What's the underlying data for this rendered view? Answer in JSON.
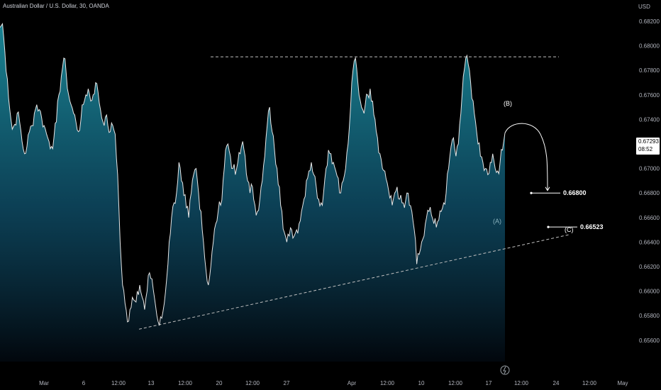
{
  "title": "Australian Dollar / U.S. Dollar, 30, OANDA",
  "currency": "USD",
  "price_badge": {
    "price": "0.67293",
    "countdown": "08:52"
  },
  "chart_data": {
    "type": "area",
    "symbol": "AUDUSD",
    "y_ticks": [
      "0.68200",
      "0.68000",
      "0.67800",
      "0.67600",
      "0.67400",
      "0.67200",
      "0.67000",
      "0.66800",
      "0.66600",
      "0.66400",
      "0.66200",
      "0.66000",
      "0.65800",
      "0.65600"
    ],
    "x_ticks": [
      "Mar",
      "6",
      "12:00",
      "13",
      "12:00",
      "20",
      "12:00",
      "27",
      "Apr",
      "12:00",
      "10",
      "12:00",
      "17",
      "12:00",
      "24",
      "12:00",
      "May"
    ],
    "ylim": [
      0.6551,
      0.683
    ],
    "colors": {
      "line": "#e6e6e6",
      "area_top": "#1b8a9a",
      "area_bottom": "#02070d"
    },
    "series": [
      {
        "values": [
          0.6815,
          0.6818,
          0.6795,
          0.6773,
          0.6748,
          0.6732,
          0.6736,
          0.6745,
          0.6738,
          0.6722,
          0.6712,
          0.6718,
          0.673,
          0.6735,
          0.6745,
          0.6752,
          0.6748,
          0.6741,
          0.6735,
          0.6728,
          0.6722,
          0.6718,
          0.6725,
          0.6738,
          0.676,
          0.6775,
          0.679,
          0.6778,
          0.676,
          0.6752,
          0.6745,
          0.6738,
          0.673,
          0.674,
          0.6752,
          0.676,
          0.6765,
          0.6755,
          0.676,
          0.677,
          0.6762,
          0.6748,
          0.6738,
          0.6742,
          0.6735,
          0.673,
          0.6735,
          0.6728,
          0.6695,
          0.664,
          0.6605,
          0.659,
          0.6575,
          0.6585,
          0.6595,
          0.6592,
          0.66,
          0.6605,
          0.6595,
          0.6585,
          0.66,
          0.6615,
          0.661,
          0.6595,
          0.658,
          0.6572,
          0.6578,
          0.659,
          0.661,
          0.664,
          0.666,
          0.6672,
          0.668,
          0.6705,
          0.669,
          0.6678,
          0.6668,
          0.666,
          0.668,
          0.6695,
          0.67,
          0.668,
          0.6665,
          0.664,
          0.6618,
          0.6605,
          0.662,
          0.664,
          0.6655,
          0.6665,
          0.667,
          0.669,
          0.6715,
          0.672,
          0.671,
          0.67,
          0.6695,
          0.6705,
          0.6712,
          0.6722,
          0.671,
          0.669,
          0.668,
          0.6685,
          0.667,
          0.6665,
          0.6675,
          0.669,
          0.671,
          0.6735,
          0.675,
          0.673,
          0.6715,
          0.67,
          0.6685,
          0.6665,
          0.6648,
          0.664,
          0.6645,
          0.665,
          0.6645,
          0.665,
          0.6655,
          0.6665,
          0.6675,
          0.669,
          0.6698,
          0.6705,
          0.6695,
          0.6685,
          0.6675,
          0.6672,
          0.668,
          0.67,
          0.6715,
          0.6712,
          0.6705,
          0.6698,
          0.6692,
          0.668,
          0.669,
          0.67,
          0.672,
          0.675,
          0.678,
          0.679,
          0.677,
          0.6755,
          0.6748,
          0.6752,
          0.676,
          0.6765,
          0.6755,
          0.674,
          0.6725,
          0.6712,
          0.67,
          0.6698,
          0.6688,
          0.6676,
          0.667,
          0.668,
          0.6685,
          0.6675,
          0.6672,
          0.6668,
          0.668,
          0.667,
          0.6665,
          0.665,
          0.6622,
          0.663,
          0.664,
          0.6645,
          0.666,
          0.6665,
          0.6662,
          0.6655,
          0.6652,
          0.6658,
          0.6665,
          0.6672,
          0.668,
          0.67,
          0.6718,
          0.6725,
          0.671,
          0.672,
          0.6745,
          0.6775,
          0.679,
          0.6785,
          0.677,
          0.6755,
          0.6738,
          0.672,
          0.671,
          0.6705,
          0.67,
          0.6695,
          0.6705,
          0.6712,
          0.67,
          0.6698,
          0.6705,
          0.6715,
          0.6729
        ]
      }
    ],
    "projection": {
      "waypoints": [
        0.6729,
        0.6736,
        0.6718,
        0.6682
      ]
    },
    "resistance_line": {
      "y": 0.6791
    },
    "support_line": {
      "from_y": 0.6569,
      "to_y": 0.6646
    },
    "labels": {
      "B": "(B)",
      "A": "(A)",
      "C": "(C)",
      "target1": "0.66800",
      "target2": "0.66523"
    }
  }
}
